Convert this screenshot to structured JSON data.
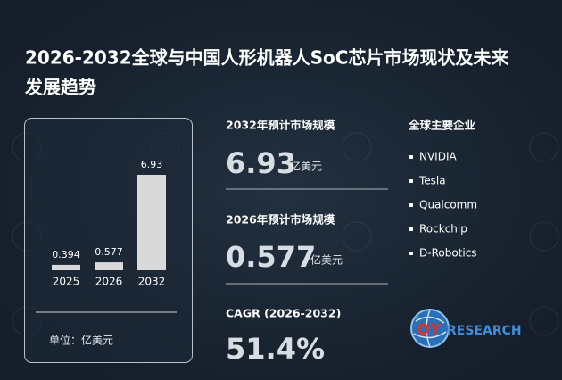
{
  "header": {
    "title_line1": "2026-2032全球与中国人形机器人SoC芯片市场现状及未来",
    "title_line2": "发展趋势"
  },
  "chart_data": {
    "type": "bar",
    "categories": [
      "2025",
      "2026",
      "2032"
    ],
    "values": [
      0.394,
      0.577,
      6.93
    ],
    "color": "#d9d9d9",
    "unit": "单位：亿美元"
  },
  "stats": [
    {
      "label": "2032年预计市场规模",
      "value": 6.93,
      "unit": "亿美元"
    },
    {
      "label": "2026年预计市场规模",
      "value": 0.577,
      "unit": "亿美元"
    },
    {
      "label": "CAGR (2026-2032)",
      "value": "51.4%"
    }
  ],
  "companies": {
    "title": "全球主要企业",
    "items": [
      "NVIDIA",
      "Tesla",
      "Qualcomm",
      "Rockchip",
      "D-Robotics"
    ]
  },
  "logo": {
    "primary": "QY",
    "secondary": "RESEARCH"
  }
}
